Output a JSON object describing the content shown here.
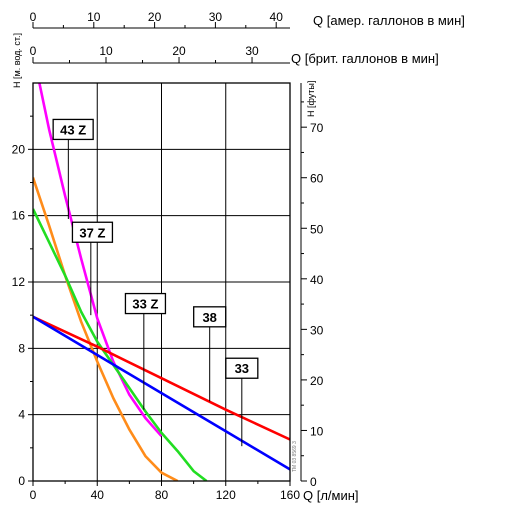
{
  "chart_data": {
    "type": "line",
    "x_bottom": {
      "label": "Q [л/мин]",
      "ticks": [
        0,
        40,
        80,
        120,
        160
      ],
      "range": [
        0,
        160
      ]
    },
    "x_top_us": {
      "label": "Q [амер. галлонов в мин]",
      "ticks": [
        0,
        10,
        20,
        30,
        40
      ],
      "range": [
        0,
        42.27
      ]
    },
    "x_top_uk": {
      "label": "Q [брит. галлонов в мин]",
      "ticks": [
        0,
        10,
        20,
        30
      ],
      "range": [
        0,
        35.2
      ]
    },
    "y_left": {
      "label": "H [м. вод. ст.]",
      "ticks": [
        0,
        4,
        8,
        12,
        16,
        20
      ],
      "range": [
        0,
        24
      ]
    },
    "y_right": {
      "label": "H [футы]",
      "ticks": [
        0,
        10,
        20,
        30,
        40,
        50,
        60,
        70
      ],
      "range": [
        0,
        78.74
      ]
    },
    "grid": true,
    "watermark": "TM 03 8569 3",
    "series": [
      {
        "name": "43 Z",
        "color": "#ff00ff",
        "x": [
          4,
          10,
          20,
          30,
          40,
          50,
          60,
          70,
          80
        ],
        "y": [
          24,
          21.2,
          17.2,
          13.4,
          9.8,
          7.2,
          5.2,
          3.8,
          2.7
        ]
      },
      {
        "name": "37 Z",
        "color": "#ff8c1a",
        "x": [
          0,
          10,
          20,
          30,
          40,
          50,
          60,
          70,
          80,
          90
        ],
        "y": [
          18.3,
          15.4,
          12.4,
          9.6,
          7.2,
          5.0,
          3.1,
          1.5,
          0.5,
          0
        ]
      },
      {
        "name": "33 Z",
        "color": "#22dd22",
        "x": [
          0,
          10,
          20,
          30,
          40,
          50,
          60,
          70,
          80,
          90,
          100,
          108
        ],
        "y": [
          16.4,
          14.4,
          12.4,
          10.2,
          8.4,
          7.0,
          5.6,
          4.2,
          2.9,
          1.8,
          0.6,
          0
        ]
      },
      {
        "name": "38",
        "color": "#ff0000",
        "x": [
          0,
          40,
          80,
          120,
          160
        ],
        "y": [
          9.9,
          8.1,
          6.2,
          4.3,
          2.5
        ]
      },
      {
        "name": "33",
        "color": "#0000ff",
        "x": [
          0,
          40,
          80,
          120,
          160
        ],
        "y": [
          9.9,
          7.6,
          5.3,
          3.0,
          0.7
        ]
      }
    ],
    "annotations": [
      {
        "text": "43 Z",
        "series": "43 Z",
        "box_x": 25,
        "box_y": 21.2,
        "leader_x": 22,
        "leader_y": 15.8
      },
      {
        "text": "37 Z",
        "series": "37 Z",
        "box_x": 37,
        "box_y": 15.0,
        "leader_x": 36,
        "leader_y": 10.0
      },
      {
        "text": "33 Z",
        "series": "33 Z",
        "box_x": 70,
        "box_y": 10.7,
        "leader_x": 69,
        "leader_y": 4.3
      },
      {
        "text": "38",
        "series": "38",
        "box_x": 110,
        "box_y": 9.9,
        "leader_x": 110,
        "leader_y": 4.8
      },
      {
        "text": "33",
        "series": "33",
        "box_x": 130,
        "box_y": 6.8,
        "leader_x": 130,
        "leader_y": 2.1
      }
    ]
  }
}
